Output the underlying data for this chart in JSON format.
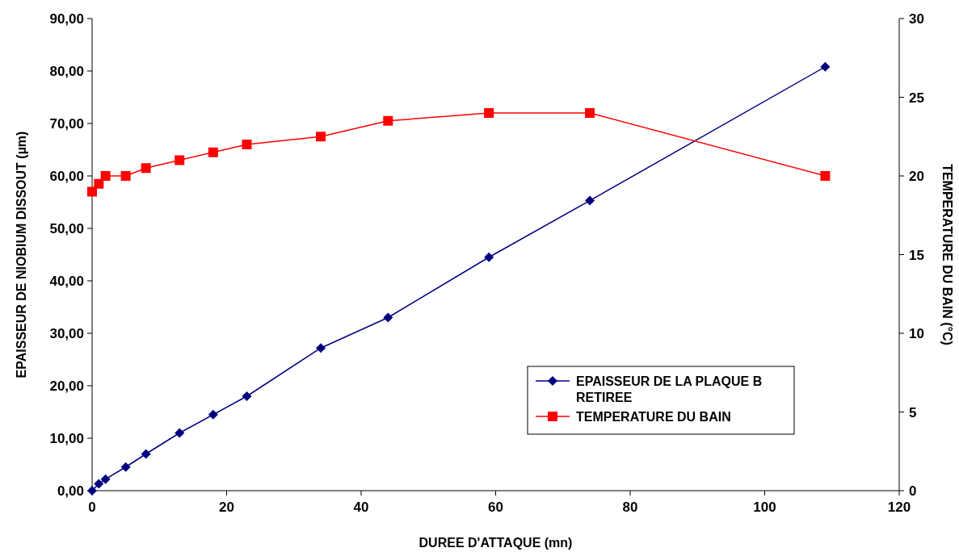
{
  "chart_data": {
    "type": "line",
    "xlabel": "DUREE D'ATTAQUE (mn)",
    "ylabel": "EPAISSEUR DE NIOBIUM DISSOUT (µm)",
    "y2label": "TEMPERATURE DU BAIN  (°C)",
    "x": [
      0,
      1,
      2,
      5,
      8,
      13,
      18,
      23,
      34,
      44,
      59,
      74,
      109
    ],
    "series": [
      {
        "name": "EPAISSEUR DE LA PLAQUE B RETIREE",
        "color": "#000080",
        "marker": "diamond",
        "values": [
          0,
          1.3,
          2.2,
          4.5,
          7,
          11,
          14.5,
          18,
          27.2,
          33,
          44.5,
          55.3,
          80.8
        ]
      },
      {
        "name": "TEMPERATURE DU BAIN",
        "color": "#ff0000",
        "marker": "square",
        "axis": "y2",
        "values": [
          19,
          19.5,
          20,
          20,
          20.5,
          21,
          21.5,
          22,
          22.5,
          23.5,
          24,
          24,
          20
        ]
      }
    ],
    "xlim": [
      0,
      120
    ],
    "xticks": [
      0,
      20,
      40,
      60,
      80,
      100,
      120
    ],
    "ylim": [
      0,
      90
    ],
    "yticks": [
      {
        "value": 0,
        "label": "0,00"
      },
      {
        "value": 10,
        "label": "10,00"
      },
      {
        "value": 20,
        "label": "20,00"
      },
      {
        "value": 30,
        "label": "30,00"
      },
      {
        "value": 40,
        "label": "40,00"
      },
      {
        "value": 50,
        "label": "50,00"
      },
      {
        "value": 60,
        "label": "60,00"
      },
      {
        "value": 70,
        "label": "70,00"
      },
      {
        "value": 80,
        "label": "80,00"
      },
      {
        "value": 90,
        "label": "90,00"
      }
    ],
    "y2lim": [
      0,
      30
    ],
    "y2ticks": [
      0,
      5,
      10,
      15,
      20,
      25,
      30
    ],
    "grid": false,
    "legend": "bottom right"
  }
}
